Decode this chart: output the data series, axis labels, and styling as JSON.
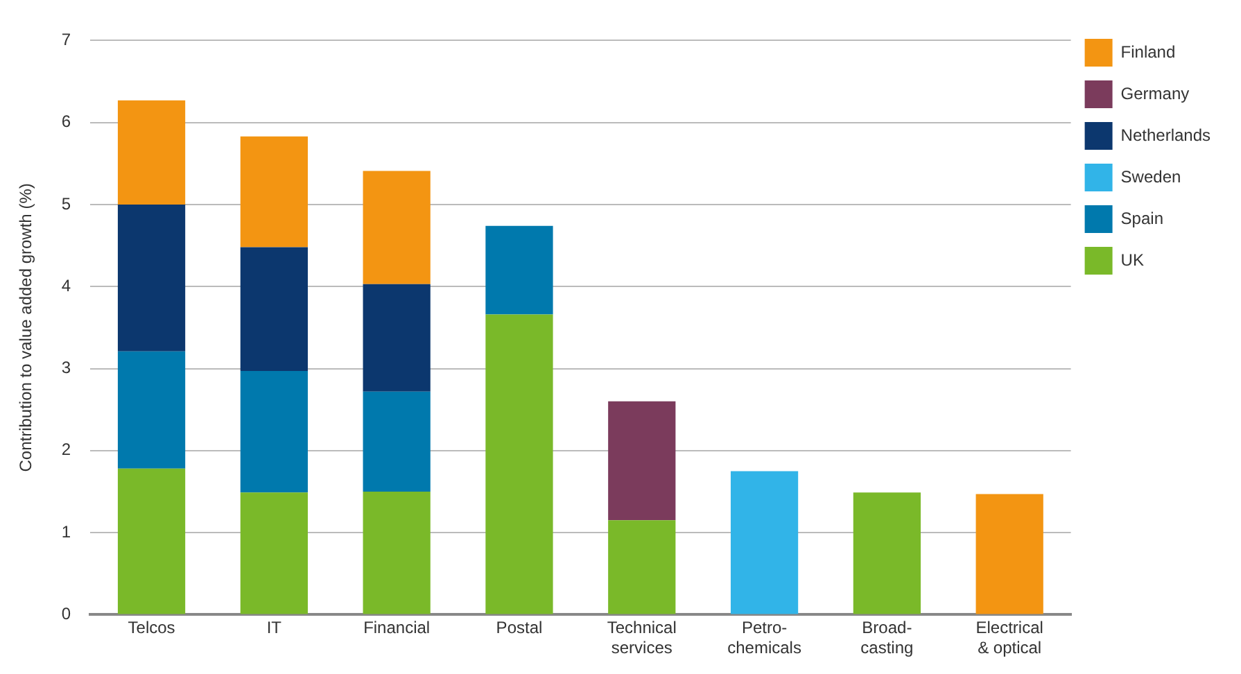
{
  "chart_data": {
    "type": "bar",
    "stacked": true,
    "ylabel": "Contribution to value added growth (%)",
    "categories": [
      "Telcos",
      "IT",
      "Financial",
      "Postal",
      "Technical services",
      "Petro-chemicals",
      "Broad-casting",
      "Electrical & optical"
    ],
    "series": [
      {
        "name": "UK",
        "color": "#7ab929",
        "values": [
          1.78,
          1.49,
          1.5,
          3.66,
          1.15,
          null,
          1.49,
          null
        ]
      },
      {
        "name": "Spain",
        "color": "#0079ad",
        "values": [
          1.43,
          1.48,
          1.22,
          1.08,
          null,
          null,
          null,
          null
        ]
      },
      {
        "name": "Sweden",
        "color": "#31b4e8",
        "values": [
          null,
          null,
          null,
          null,
          null,
          1.75,
          null,
          null
        ]
      },
      {
        "name": "Netherlands",
        "color": "#0c376e",
        "values": [
          1.79,
          1.51,
          1.31,
          null,
          null,
          null,
          null,
          null
        ]
      },
      {
        "name": "Germany",
        "color": "#7b3b5c",
        "values": [
          null,
          null,
          null,
          null,
          1.45,
          null,
          null,
          null
        ]
      },
      {
        "name": "Finland",
        "color": "#f39512",
        "values": [
          1.27,
          1.35,
          1.38,
          null,
          null,
          null,
          null,
          1.47
        ]
      }
    ],
    "ylim": [
      0,
      7
    ],
    "yticks": [
      0,
      1,
      2,
      3,
      4,
      5,
      6,
      7
    ],
    "grid": "y",
    "legend": "right"
  }
}
